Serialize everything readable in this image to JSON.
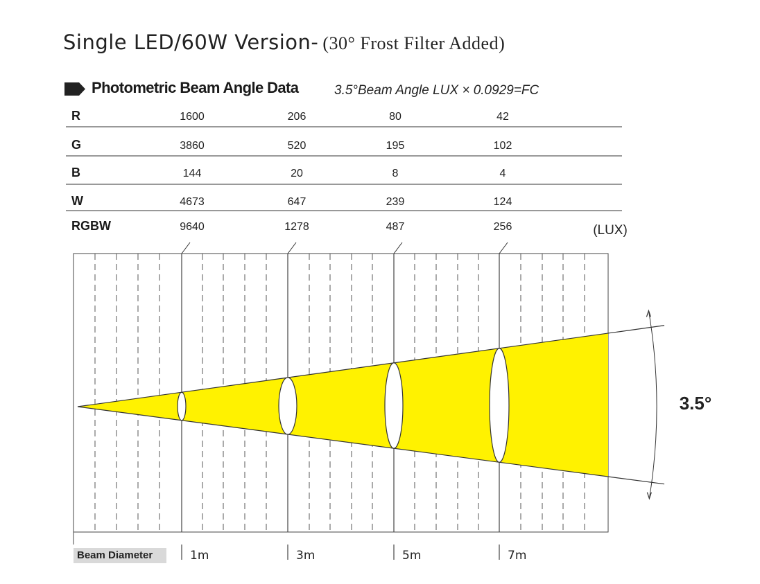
{
  "title": "Single LED/60W Version-",
  "title_paren": "(30° Frost Filter Added)",
  "section": {
    "heading": "Photometric Beam Angle Data",
    "formula": "3.5°Beam Angle  LUX × 0.0929=FC"
  },
  "table": {
    "rows": [
      {
        "label": "R",
        "values": [
          "1600",
          "206",
          "80",
          "42"
        ]
      },
      {
        "label": "G",
        "values": [
          "3860",
          "520",
          "195",
          "102"
        ]
      },
      {
        "label": "B",
        "values": [
          "144",
          "20",
          "8",
          "4"
        ]
      },
      {
        "label": "W",
        "values": [
          "4673",
          "647",
          "239",
          "124"
        ]
      },
      {
        "label": "RGBW",
        "values": [
          "9640",
          "1278",
          "487",
          "256"
        ]
      }
    ],
    "unit": "(LUX)"
  },
  "beam": {
    "angle_label": "3.5°",
    "fill_color": "#fff200",
    "distances": [
      "1m",
      "3m",
      "5m",
      "7m"
    ],
    "diameter_label": "Beam Diameter"
  }
}
